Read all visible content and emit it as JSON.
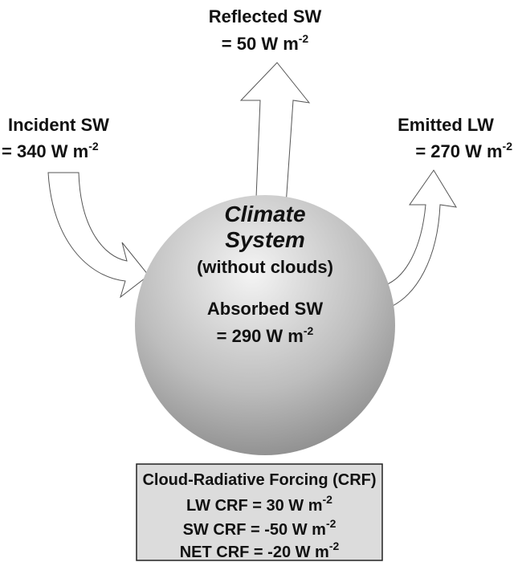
{
  "reflected": {
    "label": "Reflected SW",
    "value": "= 50 W m",
    "exponent": "-2"
  },
  "incident": {
    "label": "Incident SW",
    "value": "= 340 W m",
    "exponent": "-2"
  },
  "emitted": {
    "label": "Emitted LW",
    "value": "= 270 W m",
    "exponent": "-2"
  },
  "system": {
    "title": [
      "Climate",
      "System"
    ],
    "subtitle": "(without clouds)",
    "absorbed": {
      "label": "Absorbed SW",
      "value": "= 290 W m",
      "exponent": "-2"
    }
  },
  "crf": {
    "title": "Cloud-Radiative Forcing (CRF)",
    "lines": [
      {
        "text": "LW CRF = 30 W m",
        "exponent": "-2"
      },
      {
        "text": "SW CRF = -50 W m",
        "exponent": "-2"
      },
      {
        "text": "NET CRF = -20 W m",
        "exponent": "-2"
      }
    ]
  }
}
